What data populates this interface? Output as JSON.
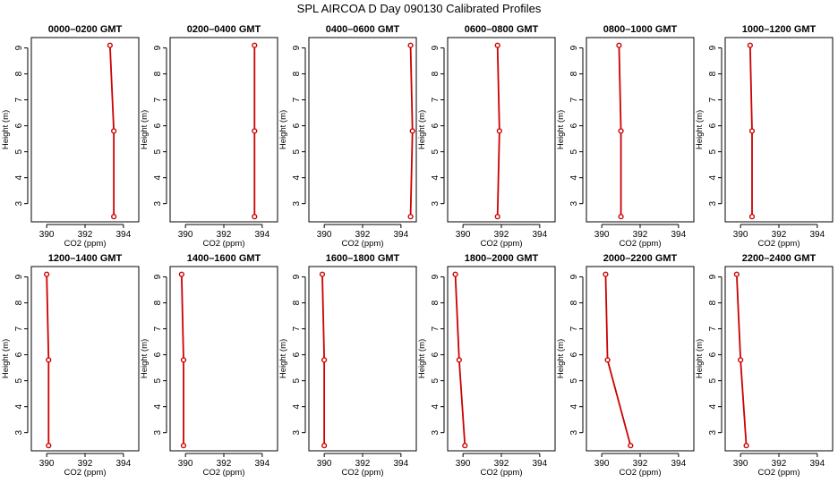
{
  "figure_title": "SPL AIRCOA D  Day 090130  Calibrated Profiles",
  "chart_data": {
    "type": "line",
    "title": "SPL AIRCOA D  Day 090130  Calibrated Profiles",
    "xlabel": "CO2 (ppm)",
    "ylabel": "Height (m)",
    "xlim": [
      389.2,
      394.8
    ],
    "ylim": [
      2.3,
      9.4
    ],
    "x_ticks": [
      390,
      392,
      394
    ],
    "y_ticks": [
      3,
      4,
      5,
      6,
      7,
      8,
      9
    ],
    "heights": [
      2.5,
      5.8,
      9.1
    ],
    "line_color": "#cc0000",
    "panels": [
      {
        "title": "0000–0200 GMT",
        "co2": [
          393.5,
          393.5,
          393.3
        ]
      },
      {
        "title": "0200–0400 GMT",
        "co2": [
          393.6,
          393.6,
          393.6
        ]
      },
      {
        "title": "0400–0600 GMT",
        "co2": [
          394.5,
          394.6,
          394.5
        ]
      },
      {
        "title": "0600–0800 GMT",
        "co2": [
          391.8,
          391.9,
          391.8
        ]
      },
      {
        "title": "0800–1000 GMT",
        "co2": [
          391.0,
          391.0,
          390.9
        ]
      },
      {
        "title": "1000–1200 GMT",
        "co2": [
          390.6,
          390.6,
          390.5
        ]
      },
      {
        "title": "1200–1400 GMT",
        "co2": [
          390.1,
          390.1,
          390.0
        ]
      },
      {
        "title": "1400–1600 GMT",
        "co2": [
          389.9,
          389.9,
          389.8
        ]
      },
      {
        "title": "1600–1800 GMT",
        "co2": [
          390.0,
          390.0,
          389.9
        ]
      },
      {
        "title": "1800–2000 GMT",
        "co2": [
          390.1,
          389.8,
          389.6
        ]
      },
      {
        "title": "2000–2200 GMT",
        "co2": [
          391.5,
          390.3,
          390.2
        ]
      },
      {
        "title": "2200–2400 GMT",
        "co2": [
          390.3,
          390.0,
          389.8
        ]
      }
    ]
  }
}
